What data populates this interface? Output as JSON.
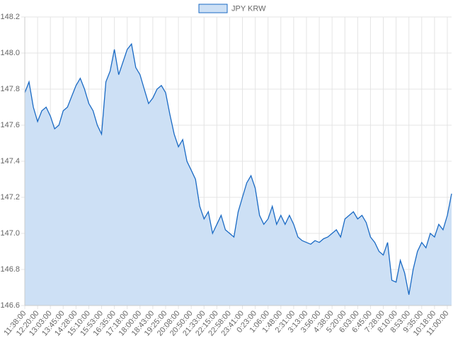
{
  "chart_data": {
    "type": "area",
    "categories": [
      "11:38:00",
      null,
      null,
      "12:20:00",
      null,
      null,
      "13:03:00",
      null,
      null,
      "13:45:00",
      null,
      null,
      "14:28:00",
      null,
      null,
      "15:10:00",
      null,
      null,
      "15:53:00",
      null,
      null,
      "16:35:00",
      null,
      null,
      "17:18:00",
      null,
      null,
      "18:00:00",
      null,
      null,
      "18:43:00",
      null,
      null,
      "19:25:00",
      null,
      null,
      "20:08:00",
      null,
      null,
      "20:50:00",
      null,
      null,
      "21:33:00",
      null,
      null,
      "22:15:00",
      null,
      null,
      "22:58:00",
      null,
      null,
      "23:41:00",
      null,
      null,
      "0:23:00",
      null,
      null,
      "1:06:00",
      null,
      null,
      "1:48:00",
      null,
      null,
      "2:31:00",
      null,
      null,
      "3:13:00",
      null,
      null,
      "3:56:00",
      null,
      null,
      "4:38:00",
      null,
      null,
      "5:20:00",
      null,
      null,
      "6:03:00",
      null,
      null,
      "6:45:00",
      null,
      null,
      "7:28:00",
      null,
      null,
      "8:10:00",
      null,
      null,
      "8:53:00",
      null,
      null,
      "9:35:00",
      null,
      null,
      "10:18:00",
      null,
      null,
      "11:00:00",
      null
    ],
    "series": [
      {
        "name": "JPY KRW",
        "color": "#1a6ac4",
        "fill": "#cde0f5",
        "values": [
          147.78,
          147.84,
          147.7,
          147.62,
          147.68,
          147.7,
          147.65,
          147.58,
          147.6,
          147.68,
          147.7,
          147.76,
          147.82,
          147.86,
          147.8,
          147.72,
          147.68,
          147.6,
          147.55,
          147.84,
          147.9,
          148.02,
          147.88,
          147.95,
          148.02,
          148.05,
          147.92,
          147.88,
          147.8,
          147.72,
          147.75,
          147.8,
          147.82,
          147.78,
          147.66,
          147.55,
          147.48,
          147.52,
          147.4,
          147.35,
          147.3,
          147.15,
          147.08,
          147.12,
          147.0,
          147.05,
          147.1,
          147.02,
          147.0,
          146.98,
          147.12,
          147.2,
          147.28,
          147.32,
          147.25,
          147.1,
          147.05,
          147.08,
          147.15,
          147.05,
          147.1,
          147.05,
          147.1,
          147.05,
          146.98,
          146.96,
          146.95,
          146.94,
          146.96,
          146.95,
          146.97,
          146.98,
          147.0,
          147.02,
          146.98,
          147.08,
          147.1,
          147.12,
          147.08,
          147.1,
          147.06,
          146.98,
          146.95,
          146.9,
          146.88,
          146.95,
          146.74,
          146.73,
          146.85,
          146.78,
          146.66,
          146.8,
          146.9,
          146.95,
          146.92,
          147.0,
          146.98,
          147.05,
          147.02,
          147.1,
          147.22
        ]
      }
    ],
    "ylim": [
      146.6,
      148.2
    ],
    "yticks": [
      146.6,
      146.8,
      {
        "value": 147,
        "label": "147.0"
      },
      147.2,
      147.4,
      147.6,
      147.8,
      {
        "value": 148,
        "label": "148.0"
      },
      148.2
    ],
    "grid": true,
    "legend": "top"
  }
}
